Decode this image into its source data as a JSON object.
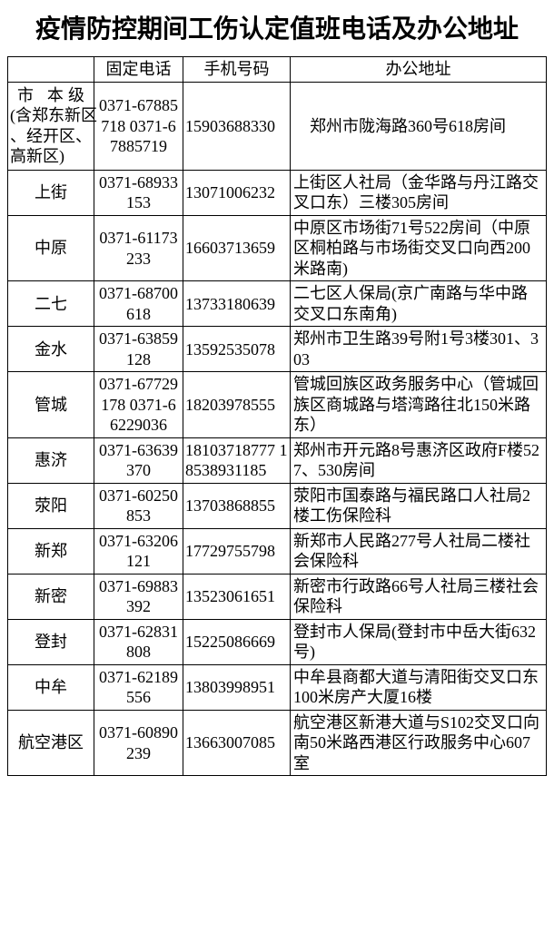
{
  "title": "疫情防控期间工伤认定值班电话及办公地址",
  "headers": {
    "district": "",
    "tel": "固定电话",
    "mobile": "手机号码",
    "addr": "办公地址"
  },
  "rows": [
    {
      "district_main": "市 本级",
      "district_sub": "(含郑东新区 、经开区、 高新区)",
      "tel": "0371-67885718 0371-67885719",
      "mobile": "15903688330",
      "addr": "　郑州市陇海路360号618房间",
      "multi": true
    },
    {
      "district": "上街",
      "tel": "0371-68933153",
      "mobile": "13071006232",
      "addr": "上街区人社局（金华路与丹江路交叉口东）三楼305房间"
    },
    {
      "district": "中原",
      "tel": "0371-61173233",
      "mobile": "16603713659",
      "addr": "中原区市场街71号522房间（中原区桐柏路与市场街交叉口向西200米路南)"
    },
    {
      "district": "二七",
      "tel": "0371-68700618",
      "mobile": "13733180639",
      "addr": "二七区人保局(京广南路与华中路交叉口东南角)"
    },
    {
      "district": "金水",
      "tel": "0371-63859128",
      "mobile": "13592535078",
      "addr": " 郑州市卫生路39号附1号3楼301、303"
    },
    {
      "district": "管城",
      "tel": "0371-67729178 0371-66229036",
      "mobile": "18203978555",
      "addr": "管城回族区政务服务中心（管城回族区商城路与塔湾路往北150米路东）"
    },
    {
      "district": "惠济",
      "tel": "0371-63639370",
      "mobile": "18103718777 18538931185",
      "addr": "郑州市开元路8号惠济区政府F楼527、530房间"
    },
    {
      "district": "荥阳",
      "tel": "0371-60250853",
      "mobile": "13703868855",
      "addr": "荥阳市国泰路与福民路口人社局2楼工伤保险科"
    },
    {
      "district": "新郑",
      "tel": "0371-63206121",
      "mobile": "17729755798",
      "addr": "新郑市人民路277号人社局二楼社会保险科"
    },
    {
      "district": "新密",
      "tel": "0371-69883392",
      "mobile": "13523061651",
      "addr": "新密市行政路66号人社局三楼社会保险科"
    },
    {
      "district": "登封",
      "tel": "0371-62831808",
      "mobile": "15225086669",
      "addr": "登封市人保局(登封市中岳大街632号)"
    },
    {
      "district": "中牟",
      "tel": "0371-62189556",
      "mobile": "13803998951",
      "addr": "中牟县商都大道与清阳街交叉口东100米房产大厦16楼"
    },
    {
      "district": "航空港区",
      "tel": "0371-60890239",
      "mobile": "13663007085",
      "addr": "航空港区新港大道与S102交叉口向南50米路西港区行政服务中心607室"
    }
  ]
}
